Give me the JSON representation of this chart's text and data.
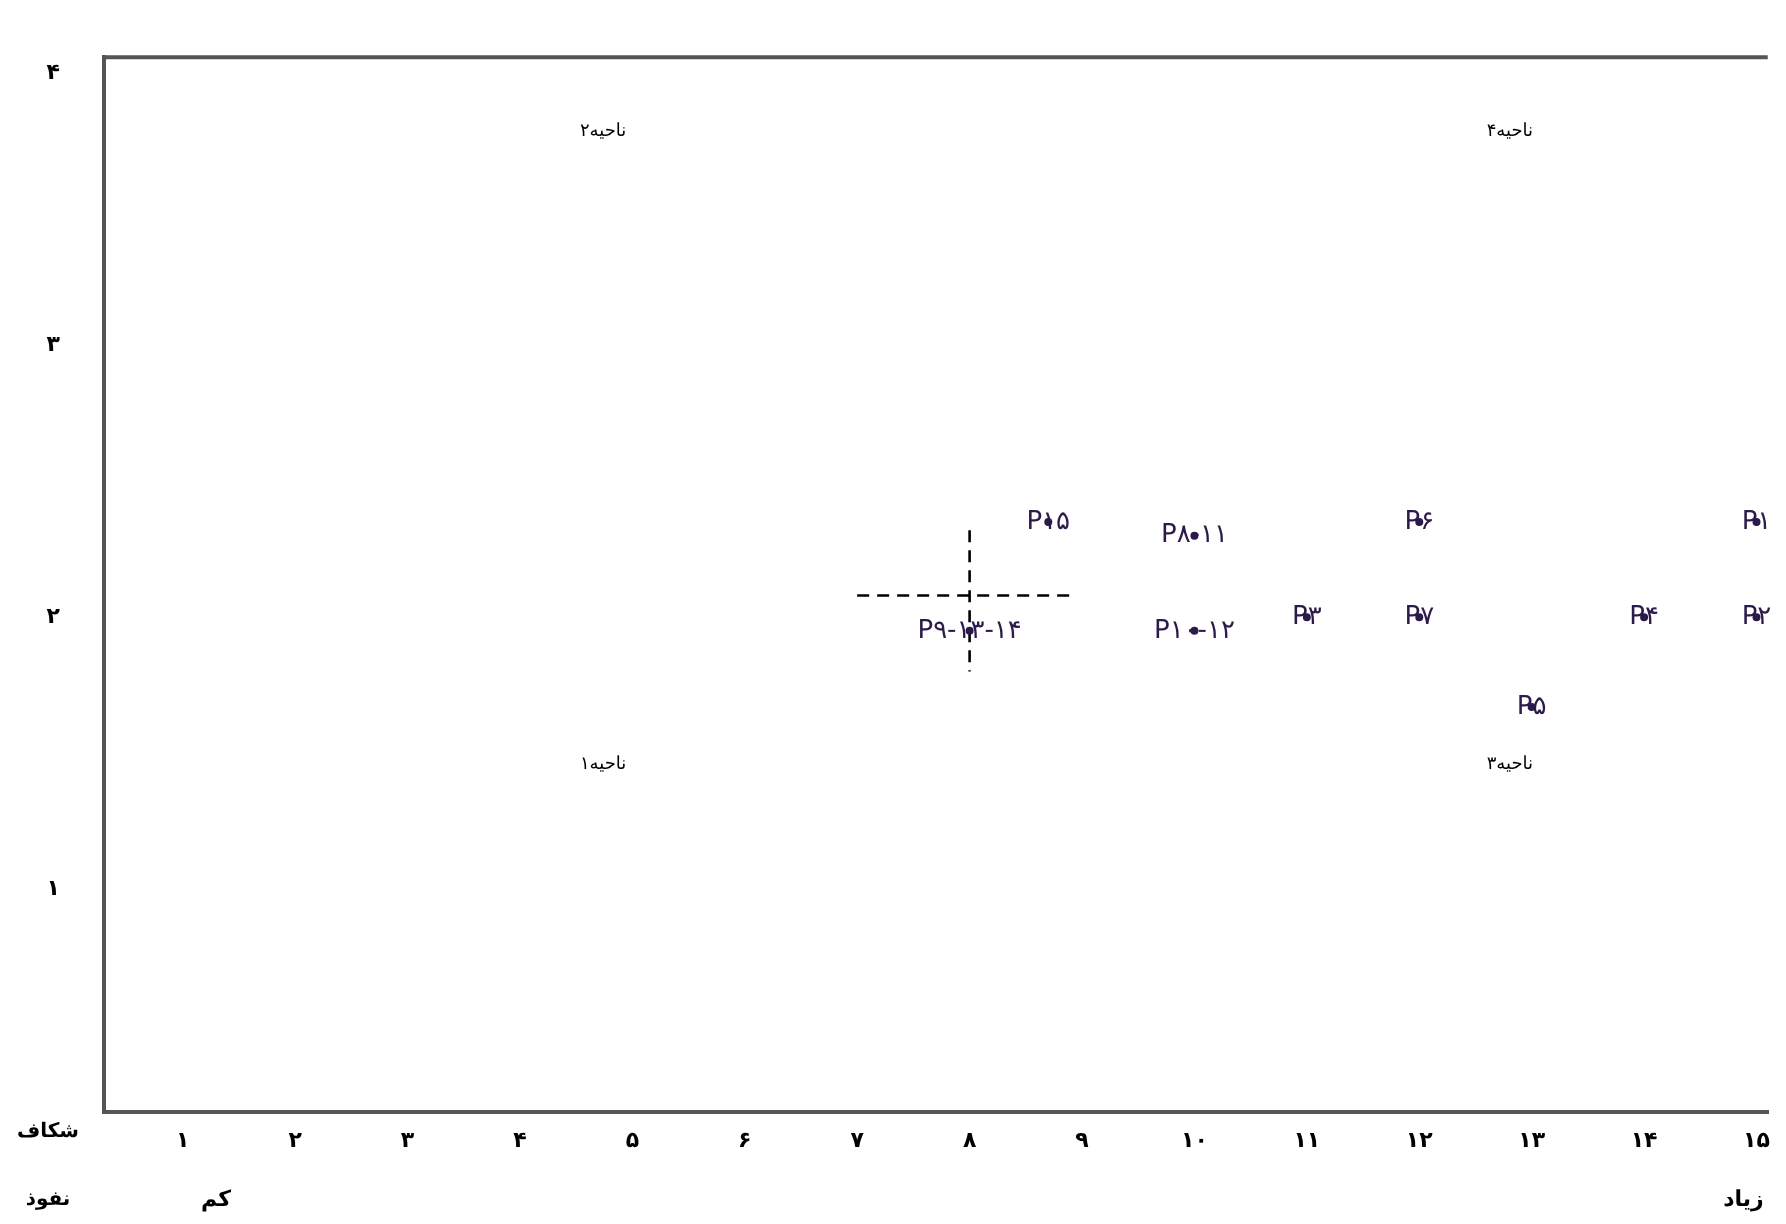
{
  "chart_data": {
    "type": "scatter",
    "xlabel": "نفوذ",
    "ylabel": "شکاف",
    "grid": false,
    "legend": false,
    "xlim": [
      0.3,
      15.1
    ],
    "ylim": [
      0.18,
      4.06
    ],
    "xticks": [
      {
        "value": 1,
        "label": "۱"
      },
      {
        "value": 2,
        "label": "۲"
      },
      {
        "value": 3,
        "label": "۳"
      },
      {
        "value": 4,
        "label": "۴"
      },
      {
        "value": 5,
        "label": "۵"
      },
      {
        "value": 6,
        "label": "۶"
      },
      {
        "value": 7,
        "label": "۷"
      },
      {
        "value": 8,
        "label": "۸"
      },
      {
        "value": 9,
        "label": "۹"
      },
      {
        "value": 10,
        "label": "۱۰"
      },
      {
        "value": 11,
        "label": "۱۱"
      },
      {
        "value": 12,
        "label": "۱۲"
      },
      {
        "value": 13,
        "label": "۱۳"
      },
      {
        "value": 14,
        "label": "۱۴"
      },
      {
        "value": 15,
        "label": "۱۵"
      }
    ],
    "yticks": [
      {
        "value": 1,
        "label": "۱"
      },
      {
        "value": 2,
        "label": "۲"
      },
      {
        "value": 3,
        "label": "۳"
      },
      {
        "value": 4,
        "label": "۴"
      }
    ],
    "series": [
      {
        "type": "scatter",
        "color": "#2b1a4a",
        "x": [
          15,
          15,
          11,
          14,
          13,
          12,
          12,
          10,
          8,
          10,
          8.7
        ],
        "values": [
          2.35,
          2,
          2,
          2,
          1.67,
          2.35,
          2,
          2.3,
          1.95,
          1.95,
          2.35
        ],
        "value_labels": [
          "P۱",
          "P۲",
          "P۳",
          "P۴",
          "P۵",
          "P۶",
          "P۷",
          "P۸-۱۱",
          "P۹-۱۳-۱۴",
          "P۱۰-۱۲",
          "P۱۵"
        ]
      },
      {
        "type": "line",
        "color": "#000000",
        "line_style": "dashed",
        "x": [
          7,
          8.9
        ],
        "values": [
          2.08,
          2.08
        ]
      },
      {
        "type": "line",
        "color": "#000000",
        "line_style": "dashed",
        "x": [
          8,
          8
        ],
        "values": [
          2.32,
          1.8
        ]
      }
    ],
    "annotations": [
      "ناحیه۲",
      "ناحیه۴",
      "ناحیه۱",
      "ناحیه۳",
      "کم",
      "زیاد"
    ]
  }
}
